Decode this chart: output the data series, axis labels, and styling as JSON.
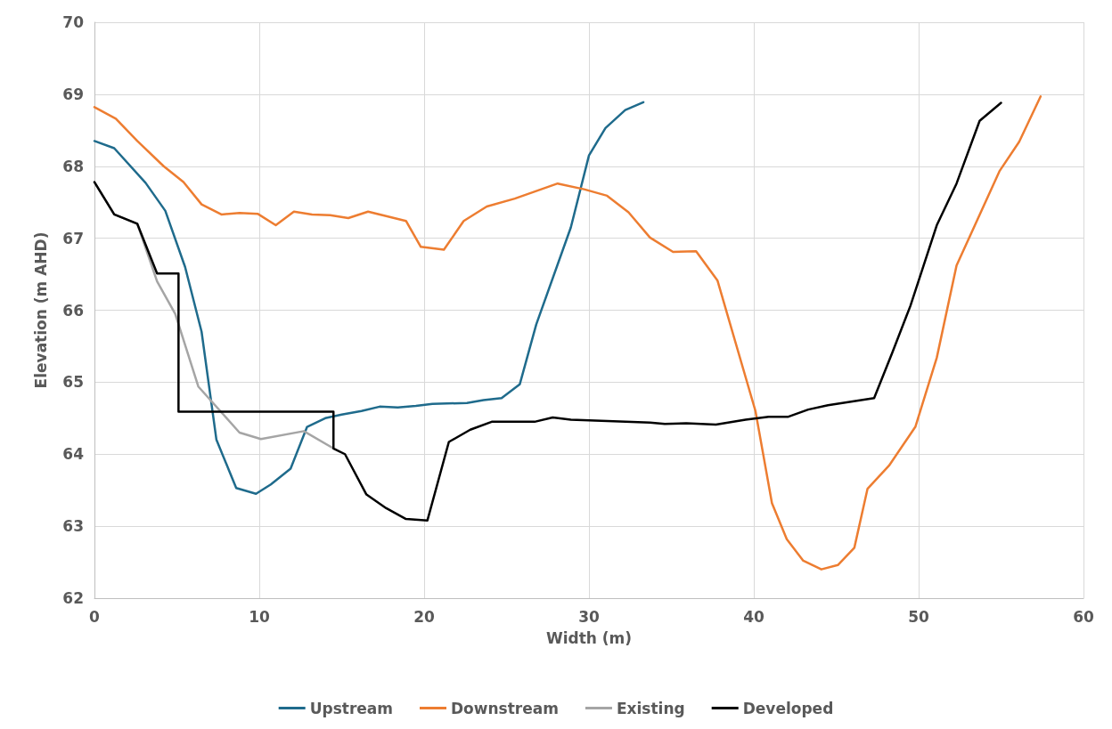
{
  "chart_data": {
    "type": "line",
    "xlabel": "Width (m)",
    "ylabel": "Elevation (m AHD)",
    "xlim": [
      0,
      60
    ],
    "xticks": [
      0,
      10,
      20,
      30,
      40,
      50,
      60
    ],
    "ylim": [
      62,
      70
    ],
    "yticks": [
      62,
      63,
      64,
      65,
      66,
      67,
      68,
      69,
      70
    ],
    "grid": true,
    "legend": "bottom",
    "marker": "none",
    "line_style": "solid",
    "series": [
      {
        "name": "Upstream",
        "color": "#1f6b8c",
        "x": [
          0,
          1.2,
          3.1,
          4.3,
          5.5,
          6.5,
          7.4,
          8.6,
          9.8,
          10.7,
          11.9,
          12.9,
          14,
          15,
          16.2,
          17.3,
          18.4,
          19.5,
          20.5,
          22.6,
          23.6,
          24.7,
          25.8,
          26.8,
          28.9,
          30,
          31,
          32.2,
          33.3
        ],
        "values": [
          68.35,
          68.25,
          67.77,
          67.38,
          66.6,
          65.7,
          64.2,
          63.53,
          63.45,
          63.58,
          63.8,
          64.38,
          64.5,
          64.55,
          64.6,
          64.66,
          64.65,
          64.67,
          64.7,
          64.71,
          64.75,
          64.78,
          64.97,
          65.8,
          67.15,
          68.15,
          68.53,
          68.78,
          68.89
        ]
      },
      {
        "name": "Downstream",
        "color": "#ed7d31",
        "x": [
          0,
          1.3,
          2.6,
          4.2,
          5.4,
          6.5,
          7.7,
          8.8,
          9.9,
          11,
          12.1,
          13.2,
          14.3,
          15.4,
          16.6,
          18.9,
          19.8,
          21.2,
          22.4,
          23.8,
          25.5,
          28.1,
          29.7,
          31.1,
          32.4,
          33.7,
          35.1,
          36.5,
          37.8,
          40.1,
          41.1,
          42,
          43,
          44.1,
          45.1,
          46.1,
          46.9,
          48.2,
          49.8,
          51.1,
          52.3,
          54.9,
          56.1,
          57.4
        ],
        "values": [
          68.82,
          68.66,
          68.35,
          68.0,
          67.78,
          67.47,
          67.33,
          67.35,
          67.34,
          67.18,
          67.37,
          67.33,
          67.32,
          67.28,
          67.37,
          67.24,
          66.88,
          66.84,
          67.24,
          67.44,
          67.55,
          67.76,
          67.68,
          67.59,
          67.36,
          67.01,
          66.81,
          66.82,
          66.41,
          64.6,
          63.32,
          62.82,
          62.52,
          62.4,
          62.46,
          62.7,
          63.52,
          63.84,
          64.38,
          65.34,
          66.62,
          67.93,
          68.34,
          68.97
        ]
      },
      {
        "name": "Existing",
        "color": "#a5a5a5",
        "x": [
          0,
          1.2,
          2.6,
          3.8,
          4.9,
          6.3,
          8.8,
          10.1,
          12.7,
          14.5
        ],
        "values": [
          67.78,
          67.33,
          67.2,
          66.4,
          65.95,
          64.94,
          64.3,
          64.21,
          64.32,
          64.08
        ]
      },
      {
        "name": "Developed",
        "color": "#000000",
        "x": [
          0,
          1.2,
          2.6,
          3.8,
          5.1,
          5.1,
          14.5,
          14.5,
          15.2,
          16.5,
          17.7,
          18.9,
          20.2,
          21.5,
          22.8,
          24.1,
          26.7,
          27.8,
          28.9,
          33.7,
          34.6,
          35.9,
          37.7,
          39.5,
          40.9,
          42.1,
          43.3,
          44.5,
          45.9,
          47.3,
          48.4,
          49.5,
          51.1,
          52.3,
          53.7,
          55
        ],
        "values": [
          67.78,
          67.33,
          67.2,
          66.51,
          66.51,
          64.59,
          64.59,
          64.08,
          64.0,
          63.44,
          63.25,
          63.1,
          63.08,
          64.17,
          64.34,
          64.45,
          64.45,
          64.51,
          64.48,
          64.44,
          64.42,
          64.43,
          64.41,
          64.48,
          64.52,
          64.52,
          64.62,
          64.68,
          64.73,
          64.78,
          65.41,
          66.06,
          67.18,
          67.76,
          68.63,
          68.88
        ]
      }
    ]
  }
}
